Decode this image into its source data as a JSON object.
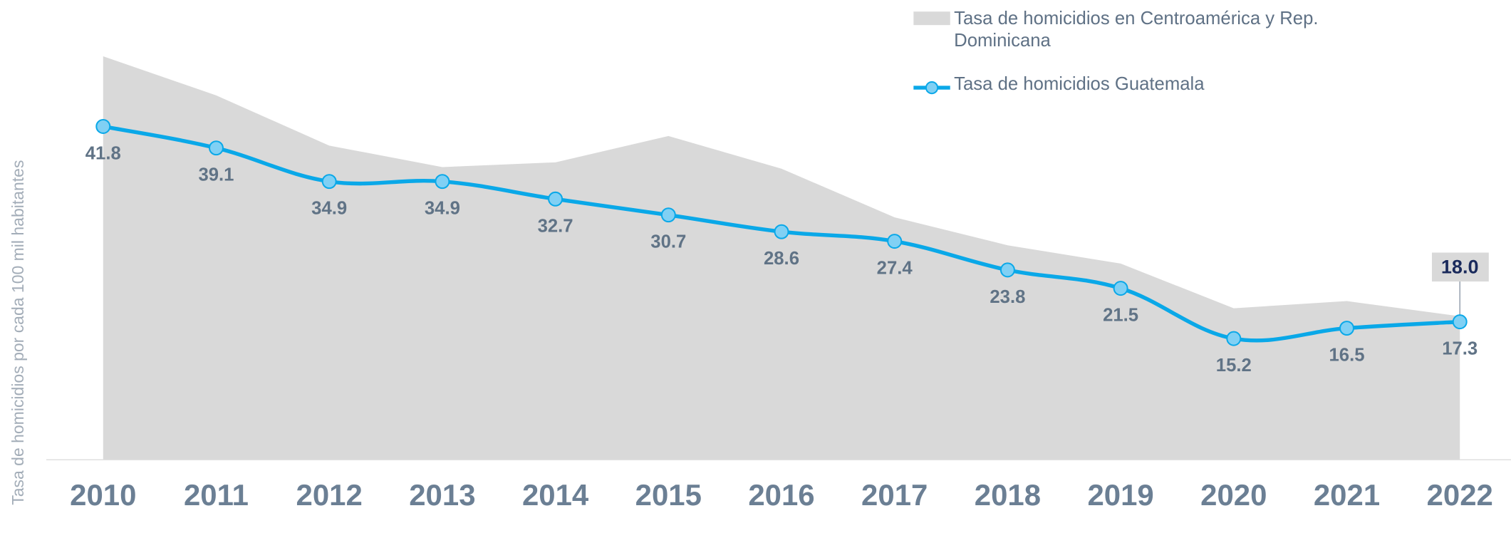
{
  "chart_data": {
    "type": "line",
    "ylabel": "Tasa de homicidios por cada 100 mil habitantes",
    "categories": [
      "2010",
      "2011",
      "2012",
      "2013",
      "2014",
      "2015",
      "2016",
      "2017",
      "2018",
      "2019",
      "2020",
      "2021",
      "2022"
    ],
    "series": [
      {
        "name": "Tasa de homicidios en Centroamérica y Rep. Dominicana",
        "type": "area",
        "color": "#d9d9d9",
        "values": [
          50.6,
          45.7,
          39.4,
          36.7,
          37.3,
          40.6,
          36.5,
          30.4,
          26.9,
          24.6,
          19.0,
          19.9,
          18.0
        ],
        "value_labels": [
          null,
          null,
          null,
          null,
          null,
          null,
          null,
          null,
          null,
          null,
          null,
          null,
          "18.0"
        ]
      },
      {
        "name": "Tasa de homicidios Guatemala",
        "type": "line",
        "color": "#0aa8e8",
        "values": [
          41.8,
          39.1,
          34.9,
          34.9,
          32.7,
          30.7,
          28.6,
          27.4,
          23.8,
          21.5,
          15.2,
          16.5,
          17.3
        ]
      }
    ],
    "ylim": [
      0,
      55
    ],
    "legend": "top-right"
  }
}
